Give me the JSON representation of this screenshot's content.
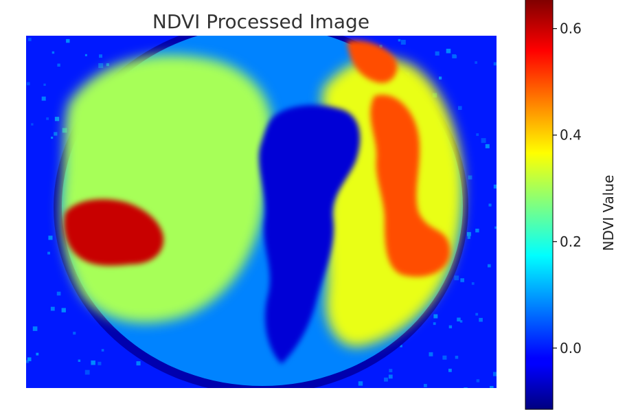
{
  "chart_data": {
    "type": "heatmap",
    "title": "NDVI Processed Image",
    "colormap": "jet",
    "axes_visible": false,
    "colorbar": {
      "label": "NDVI Value",
      "vmin": -0.115,
      "vmax": 0.655,
      "ticks": [
        0.0,
        0.2,
        0.4,
        0.6
      ],
      "tick_labels": [
        "0.0",
        "0.2",
        "0.4",
        "0.6"
      ],
      "placement": "right"
    },
    "background_ndvi": 0.0,
    "dish_ndvi": 0.08,
    "regions": [
      {
        "name": "lower-left-hotspot",
        "level": 0.6
      },
      {
        "name": "right-crescent-hotspot",
        "level": 0.5
      },
      {
        "name": "upper-right-hotspot",
        "level": 0.5
      },
      {
        "name": "left-foliage",
        "level": 0.3
      },
      {
        "name": "right-foliage",
        "level": 0.35
      },
      {
        "name": "center-gap",
        "level": -0.05
      }
    ]
  }
}
